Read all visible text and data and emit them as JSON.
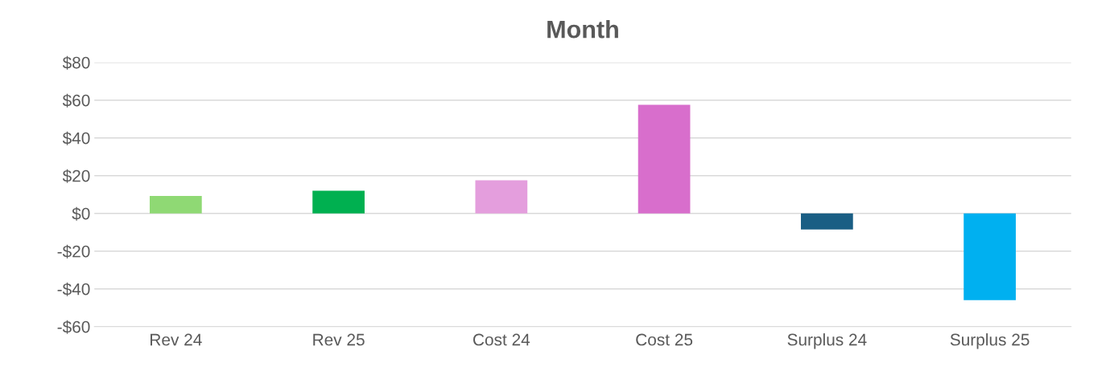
{
  "chart_data": {
    "type": "bar",
    "title": "Month",
    "categories": [
      "Rev 24",
      "Rev 25",
      "Cost 24",
      "Cost 25",
      "Surplus 24",
      "Surplus 25"
    ],
    "values": [
      9.2,
      12,
      17.5,
      57.5,
      -8.5,
      -46
    ],
    "colors": [
      "#8fd974",
      "#00b050",
      "#e49edd",
      "#d86ecc",
      "#1a5e84",
      "#00b0f0"
    ],
    "ylim": [
      -60,
      80
    ],
    "yticks": [
      {
        "value": -60,
        "label": "-$60"
      },
      {
        "value": -40,
        "label": "-$40"
      },
      {
        "value": -20,
        "label": "-$20"
      },
      {
        "value": 0,
        "label": "$0"
      },
      {
        "value": 20,
        "label": "$20"
      },
      {
        "value": 40,
        "label": "$40"
      },
      {
        "value": 60,
        "label": "$60"
      },
      {
        "value": 80,
        "label": "$80"
      }
    ],
    "grid": "y"
  }
}
